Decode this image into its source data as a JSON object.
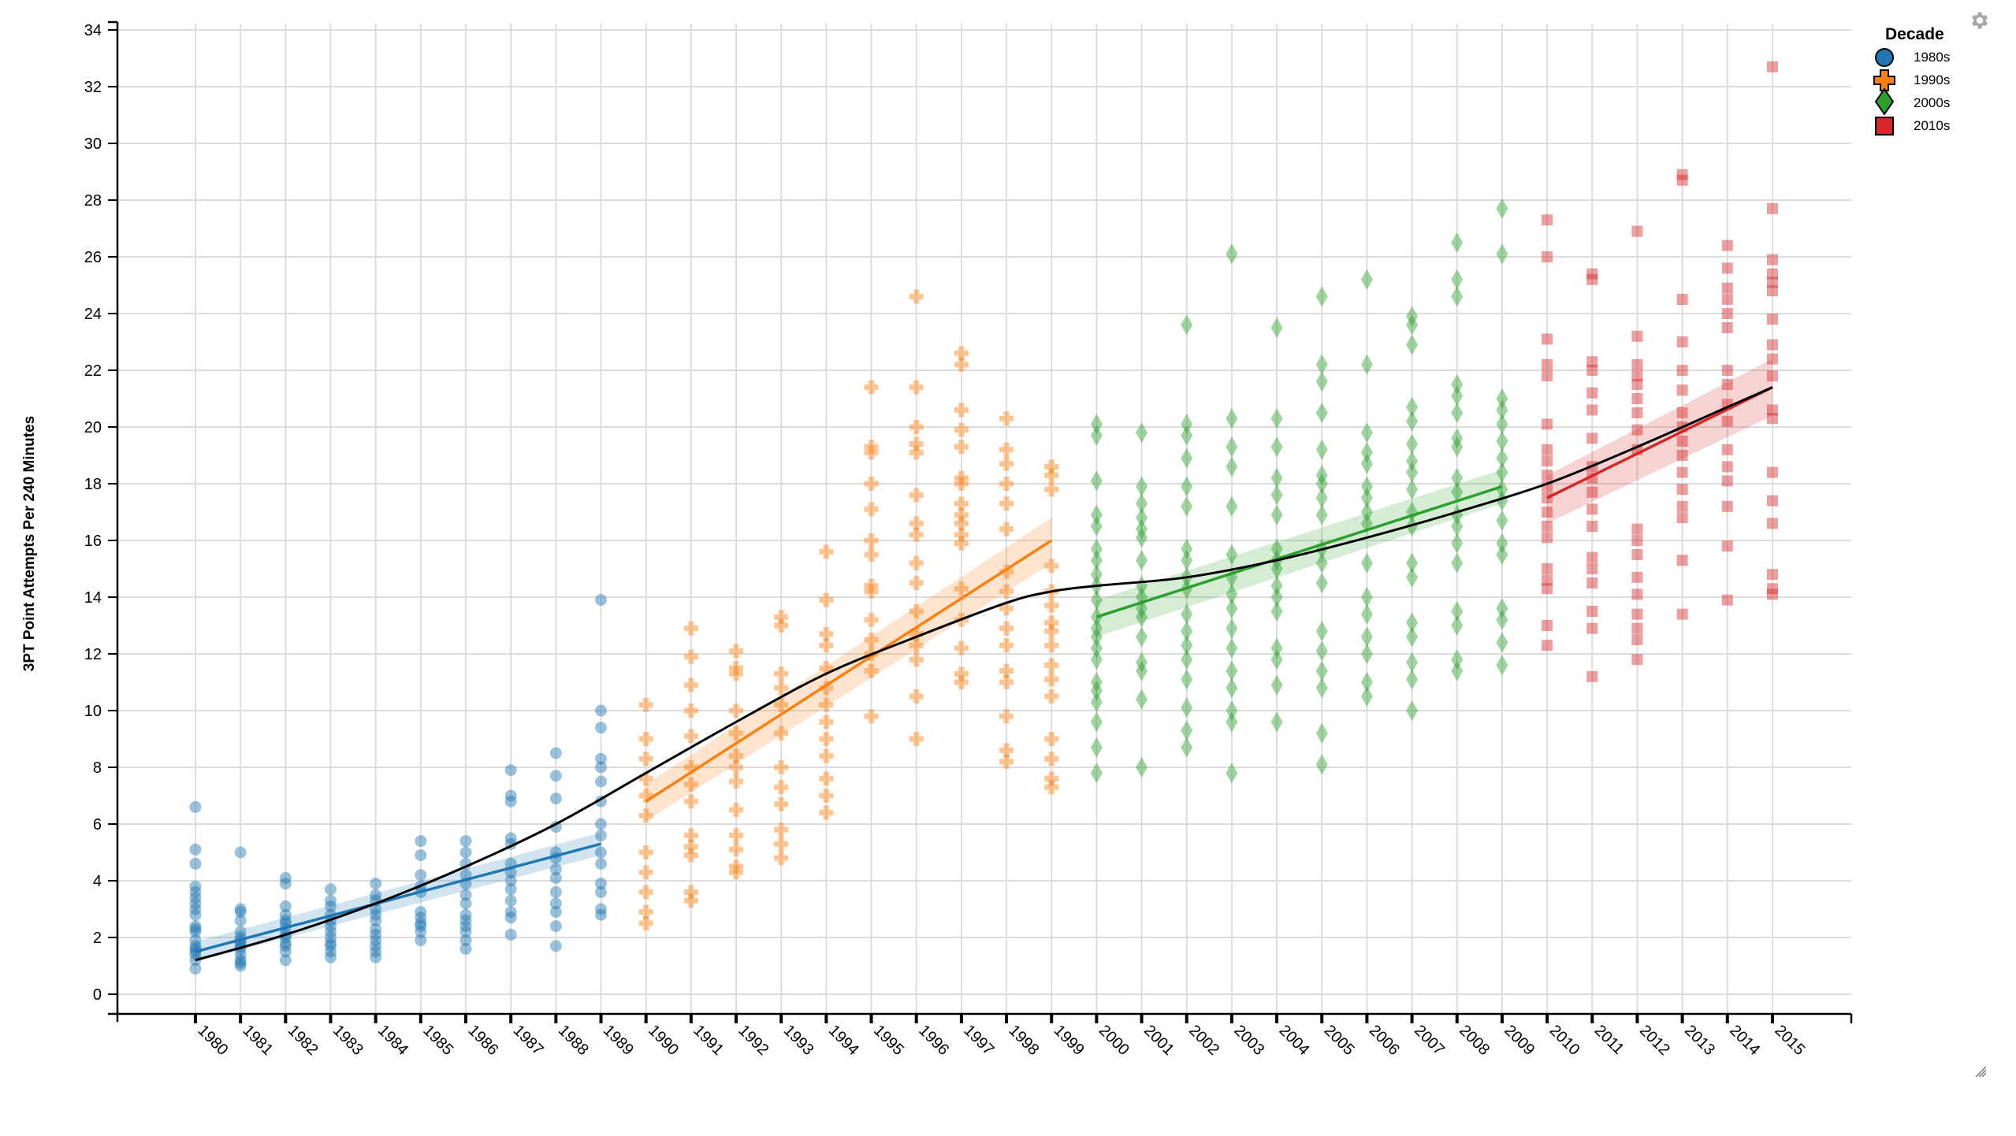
{
  "chart_data": {
    "type": "scatter",
    "title": "",
    "xlabel": "",
    "ylabel": "3PT Point Attempts Per 240 Minutes",
    "ylim": [
      -0.7,
      34.3
    ],
    "yticks": [
      0,
      2,
      4,
      6,
      8,
      10,
      12,
      14,
      16,
      18,
      20,
      22,
      24,
      26,
      28,
      30,
      32,
      34
    ],
    "xticks": [
      1980,
      1981,
      1982,
      1983,
      1984,
      1985,
      1986,
      1987,
      1988,
      1989,
      1990,
      1991,
      1992,
      1993,
      1994,
      1995,
      1996,
      1997,
      1998,
      1999,
      2000,
      2001,
      2002,
      2003,
      2004,
      2005,
      2006,
      2007,
      2008,
      2009,
      2010,
      2011,
      2012,
      2013,
      2014,
      2015
    ],
    "grid": true,
    "legend": {
      "title": "Decade",
      "position": "top-right"
    },
    "series": [
      {
        "name": "1980s",
        "marker": "circle",
        "color": "#1f77b4",
        "points": {
          "1980": [
            6.6,
            5.1,
            4.6,
            3.8,
            3.6,
            3.4,
            3.2,
            3.0,
            2.8,
            2.4,
            2.3,
            2.2,
            1.9,
            1.7,
            1.6,
            1.5,
            1.4,
            1.2,
            0.9
          ],
          "1981": [
            5.0,
            3.0,
            2.9,
            2.6,
            2.2,
            2.0,
            1.9,
            1.8,
            1.7,
            1.6,
            1.4,
            1.2,
            1.1,
            1.0
          ],
          "1982": [
            4.1,
            3.9,
            3.1,
            2.8,
            2.6,
            2.5,
            2.3,
            2.1,
            2.0,
            1.8,
            1.7,
            1.5,
            1.2
          ],
          "1983": [
            3.7,
            3.3,
            3.1,
            2.8,
            2.6,
            2.4,
            2.2,
            2.0,
            1.8,
            1.7,
            1.5,
            1.3
          ],
          "1984": [
            3.9,
            3.5,
            3.3,
            3.0,
            2.8,
            2.6,
            2.3,
            2.1,
            1.9,
            1.7,
            1.5,
            1.3
          ],
          "1985": [
            5.4,
            4.9,
            4.2,
            3.8,
            3.6,
            2.9,
            2.7,
            2.5,
            2.4,
            2.2,
            1.9
          ],
          "1986": [
            5.4,
            5.0,
            4.6,
            4.2,
            3.9,
            3.5,
            3.2,
            2.8,
            2.6,
            2.4,
            2.2,
            1.9,
            1.6
          ],
          "1987": [
            7.9,
            7.0,
            6.8,
            5.5,
            5.3,
            4.6,
            4.3,
            4.0,
            3.7,
            3.3,
            2.9,
            2.7,
            2.1
          ],
          "1988": [
            8.5,
            7.7,
            6.9,
            5.9,
            5.0,
            4.8,
            4.4,
            4.1,
            3.6,
            3.2,
            2.9,
            2.4,
            1.7
          ],
          "1989": [
            13.9,
            10.0,
            9.4,
            8.3,
            8.0,
            7.5,
            6.8,
            6.0,
            5.6,
            5.0,
            4.6,
            3.9,
            3.6,
            3.0,
            2.8
          ]
        },
        "fit": {
          "x": [
            1980,
            1989
          ],
          "y": [
            1.5,
            5.3
          ],
          "ci": [
            [
              1.85,
              1.15
            ],
            [
              5.7,
              4.9
            ]
          ]
        }
      },
      {
        "name": "1990s",
        "marker": "plus",
        "color": "#ff7f0e",
        "points": {
          "1990": [
            10.2,
            9.0,
            8.3,
            7.6,
            7.0,
            6.3,
            5.0,
            4.3,
            3.6,
            2.9,
            2.5
          ],
          "1991": [
            12.9,
            11.9,
            10.9,
            10.0,
            9.1,
            8.0,
            7.4,
            6.8,
            5.6,
            5.2,
            4.9,
            3.6,
            3.3
          ],
          "1992": [
            12.1,
            11.5,
            11.3,
            10.0,
            9.2,
            8.4,
            8.0,
            7.5,
            6.5,
            5.6,
            5.1,
            4.5,
            4.3
          ],
          "1993": [
            13.3,
            13.0,
            11.3,
            10.8,
            10.2,
            9.2,
            8.0,
            7.3,
            6.7,
            5.8,
            5.3,
            4.8
          ],
          "1994": [
            15.6,
            13.9,
            12.7,
            12.3,
            11.5,
            10.8,
            10.2,
            9.6,
            9.0,
            8.4,
            7.6,
            7.0,
            6.4
          ],
          "1995": [
            21.4,
            19.3,
            19.1,
            18.0,
            17.1,
            16.0,
            15.5,
            14.4,
            14.2,
            13.2,
            12.5,
            12.0,
            11.4,
            9.8
          ],
          "1996": [
            24.6,
            21.4,
            20.0,
            19.4,
            19.1,
            17.6,
            16.6,
            16.2,
            15.2,
            14.5,
            13.5,
            12.7,
            12.3,
            11.8,
            10.5,
            9.0
          ],
          "1997": [
            22.6,
            22.2,
            20.6,
            19.9,
            19.3,
            18.2,
            18.0,
            17.3,
            16.9,
            16.6,
            16.2,
            15.9,
            14.3,
            13.2,
            12.2,
            11.3,
            11.0
          ],
          "1998": [
            20.3,
            19.2,
            18.7,
            18.0,
            17.3,
            16.4,
            14.9,
            14.2,
            13.6,
            12.9,
            12.3,
            11.4,
            11.0,
            9.8,
            8.6,
            8.2
          ],
          "1999": [
            18.6,
            18.3,
            17.8,
            15.1,
            14.2,
            13.7,
            13.1,
            12.8,
            12.3,
            11.6,
            11.1,
            10.5,
            9.0,
            8.3,
            7.6,
            7.3
          ]
        },
        "fit": {
          "x": [
            1990,
            1999
          ],
          "y": [
            6.8,
            16.0
          ],
          "ci": [
            [
              7.4,
              6.1
            ],
            [
              16.8,
              15.2
            ]
          ]
        }
      },
      {
        "name": "2000s",
        "marker": "diamond",
        "color": "#2ca02c",
        "points": {
          "2000": [
            20.1,
            19.7,
            18.1,
            16.9,
            16.5,
            15.7,
            15.3,
            14.8,
            14.4,
            13.9,
            13.3,
            12.9,
            12.6,
            12.2,
            11.8,
            11.0,
            10.7,
            10.3,
            9.6,
            8.7,
            7.8
          ],
          "2001": [
            19.8,
            17.9,
            17.3,
            16.8,
            16.4,
            16.1,
            15.3,
            14.4,
            14.0,
            13.6,
            13.3,
            12.6,
            11.7,
            11.4,
            10.4,
            8.0
          ],
          "2002": [
            23.6,
            20.1,
            19.7,
            18.9,
            17.9,
            17.2,
            15.7,
            15.3,
            14.7,
            14.3,
            13.4,
            12.8,
            12.3,
            11.8,
            11.1,
            10.1,
            9.3,
            8.7
          ],
          "2003": [
            26.1,
            20.3,
            19.3,
            18.6,
            17.2,
            15.5,
            14.7,
            14.1,
            13.6,
            12.9,
            12.2,
            11.4,
            10.8,
            10.0,
            9.6,
            7.8
          ],
          "2004": [
            23.5,
            20.3,
            19.3,
            18.2,
            17.6,
            16.9,
            15.7,
            15.3,
            15.0,
            14.4,
            14.0,
            13.5,
            12.2,
            11.8,
            10.9,
            9.6
          ],
          "2005": [
            24.6,
            22.2,
            21.6,
            20.5,
            19.2,
            18.3,
            18.0,
            17.5,
            16.9,
            15.7,
            15.2,
            14.5,
            12.8,
            12.1,
            11.4,
            10.8,
            9.2,
            8.1
          ],
          "2006": [
            25.2,
            22.2,
            19.8,
            19.1,
            18.7,
            17.9,
            17.5,
            17.0,
            16.6,
            15.2,
            14.0,
            13.4,
            12.6,
            12.0,
            11.0,
            10.5
          ],
          "2007": [
            23.9,
            23.6,
            22.9,
            20.7,
            20.2,
            19.4,
            18.8,
            18.4,
            17.8,
            17.0,
            16.5,
            15.2,
            14.7,
            13.1,
            12.6,
            11.7,
            11.1,
            10.0
          ],
          "2008": [
            26.5,
            25.2,
            24.6,
            21.5,
            21.1,
            20.5,
            19.6,
            19.3,
            18.2,
            17.7,
            16.9,
            16.5,
            15.9,
            15.2,
            13.5,
            13.0,
            11.8,
            11.4
          ],
          "2009": [
            27.7,
            26.1,
            21.0,
            20.6,
            20.1,
            19.5,
            18.9,
            18.4,
            17.8,
            17.4,
            16.7,
            15.9,
            15.5,
            13.6,
            13.2,
            12.4,
            11.6
          ]
        },
        "fit": {
          "x": [
            2000,
            2009
          ],
          "y": [
            13.3,
            17.9
          ],
          "ci": [
            [
              13.9,
              12.6
            ],
            [
              18.5,
              17.3
            ]
          ]
        }
      },
      {
        "name": "2010s",
        "marker": "square",
        "color": "#d62728",
        "points": {
          "2010": [
            27.3,
            26.0,
            23.1,
            22.2,
            21.8,
            20.1,
            19.2,
            18.8,
            18.3,
            17.9,
            17.5,
            17.0,
            16.5,
            16.1,
            15.0,
            14.6,
            14.3,
            13.0,
            12.3
          ],
          "2011": [
            25.4,
            25.2,
            22.3,
            22.0,
            21.2,
            20.6,
            19.6,
            18.6,
            18.2,
            17.7,
            17.1,
            16.5,
            15.4,
            15.0,
            14.5,
            13.5,
            12.9,
            11.2
          ],
          "2012": [
            26.9,
            23.2,
            22.2,
            21.8,
            21.5,
            21.0,
            20.5,
            19.9,
            19.2,
            16.4,
            16.0,
            15.5,
            14.7,
            14.1,
            13.4,
            12.9,
            12.5,
            11.8
          ],
          "2013": [
            28.9,
            28.7,
            24.5,
            23.0,
            22.0,
            21.3,
            20.5,
            20.0,
            19.5,
            19.0,
            18.4,
            17.8,
            17.2,
            16.8,
            15.3,
            13.4
          ],
          "2014": [
            26.4,
            25.6,
            24.9,
            24.5,
            24.0,
            23.5,
            22.0,
            21.5,
            20.8,
            20.2,
            19.2,
            18.6,
            18.1,
            17.2,
            15.8,
            13.9
          ],
          "2015": [
            32.7,
            27.7,
            25.9,
            25.4,
            25.1,
            24.8,
            23.8,
            22.9,
            22.4,
            21.8,
            20.6,
            20.3,
            18.4,
            17.4,
            16.6,
            14.8,
            14.3,
            14.1
          ]
        },
        "fit": {
          "x": [
            2010,
            2015
          ],
          "y": [
            17.5,
            21.4
          ],
          "ci": [
            [
              18.3,
              16.6
            ],
            [
              22.4,
              20.4
            ]
          ]
        }
      }
    ],
    "smooth_curve": {
      "color": "#000000",
      "x": [
        1980,
        1982,
        1984,
        1986,
        1988,
        1990,
        1992,
        1994,
        1996,
        1998,
        1999,
        2000,
        2002,
        2004,
        2006,
        2008,
        2010,
        2012,
        2014,
        2015
      ],
      "y": [
        1.2,
        2.1,
        3.2,
        4.5,
        6.0,
        7.8,
        9.6,
        11.3,
        12.6,
        13.8,
        14.2,
        14.4,
        14.7,
        15.3,
        16.1,
        17.0,
        18.0,
        19.3,
        20.7,
        21.4
      ]
    }
  },
  "legend": {
    "title": "Decade",
    "items": [
      {
        "label": "1980s",
        "marker": "circle",
        "color": "#1f77b4"
      },
      {
        "label": "1990s",
        "marker": "plus",
        "color": "#ff7f0e"
      },
      {
        "label": "2000s",
        "marker": "diamond",
        "color": "#2ca02c"
      },
      {
        "label": "2010s",
        "marker": "square",
        "color": "#d62728"
      }
    ]
  },
  "toolbar": {
    "gear_icon": "gear-icon",
    "resize_icon": "resize-handle-icon"
  }
}
